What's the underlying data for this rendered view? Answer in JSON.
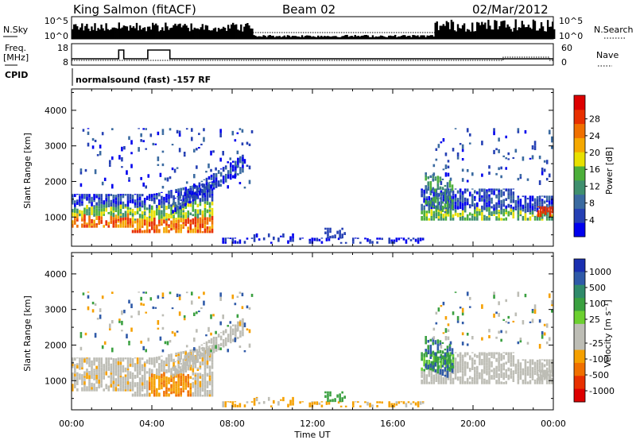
{
  "header": {
    "station": "King Salmon (fitACF)",
    "beam": "Beam 02",
    "date": "02/Mar/2012"
  },
  "strip": {
    "nsky_label": "N.Sky",
    "nsky_tick_top": "10^5",
    "nsky_tick_bottom": "10^0",
    "nsearch_label": "N.Search",
    "nsearch_tick_top": "10^5",
    "nsearch_tick_bottom": "10^0",
    "freq_label": "Freq.",
    "freq_unit": "[MHz]",
    "freq_tick_top": "18",
    "freq_tick_bottom": "8",
    "nave_label": "Nave",
    "nave_tick_top": "60",
    "nave_tick_bottom": "0",
    "cpid_label": "CPID",
    "cpid_text": "normalsound (fast) -157 RF"
  },
  "chart_data": [
    {
      "type": "heatmap",
      "quantity": "Power",
      "ylabel": "Slant Range [km]",
      "ylim": [
        180,
        4600
      ],
      "yticks": [
        1000,
        2000,
        3000,
        4000
      ],
      "xlim": [
        0,
        24
      ],
      "colorbar_label": "Power [dB]",
      "colorbar_ticks": [
        "4",
        "8",
        "12",
        "16",
        "20",
        "24",
        "28"
      ],
      "colors": [
        "#0000ee",
        "#2540b4",
        "#3a6aa0",
        "#3f8f6e",
        "#4caf3a",
        "#e8e000",
        "#f5a800",
        "#f07000",
        "#e83000",
        "#dd0000"
      ]
    },
    {
      "type": "heatmap",
      "quantity": "Velocity",
      "ylabel": "Slant Range [km]",
      "ylim": [
        180,
        4600
      ],
      "yticks": [
        1000,
        2000,
        3000,
        4000
      ],
      "xlim": [
        0,
        24
      ],
      "xlabel": "Time UT",
      "xticks": [
        "00:00",
        "04:00",
        "08:00",
        "12:00",
        "16:00",
        "20:00",
        "00:00"
      ],
      "colorbar_label": "Velocity [m s⁻¹]",
      "colorbar_ticks": [
        "1000",
        "500",
        "100",
        "25",
        "-25",
        "-100",
        "-500",
        "-1000"
      ],
      "colors": [
        "#1a2fb0",
        "#2f5aa8",
        "#2f8a6a",
        "#3aa040",
        "#6cd030",
        "#bdbdb5",
        "#bdbdb5",
        "#f5a000",
        "#f07000",
        "#e83000",
        "#dd0000"
      ]
    }
  ]
}
